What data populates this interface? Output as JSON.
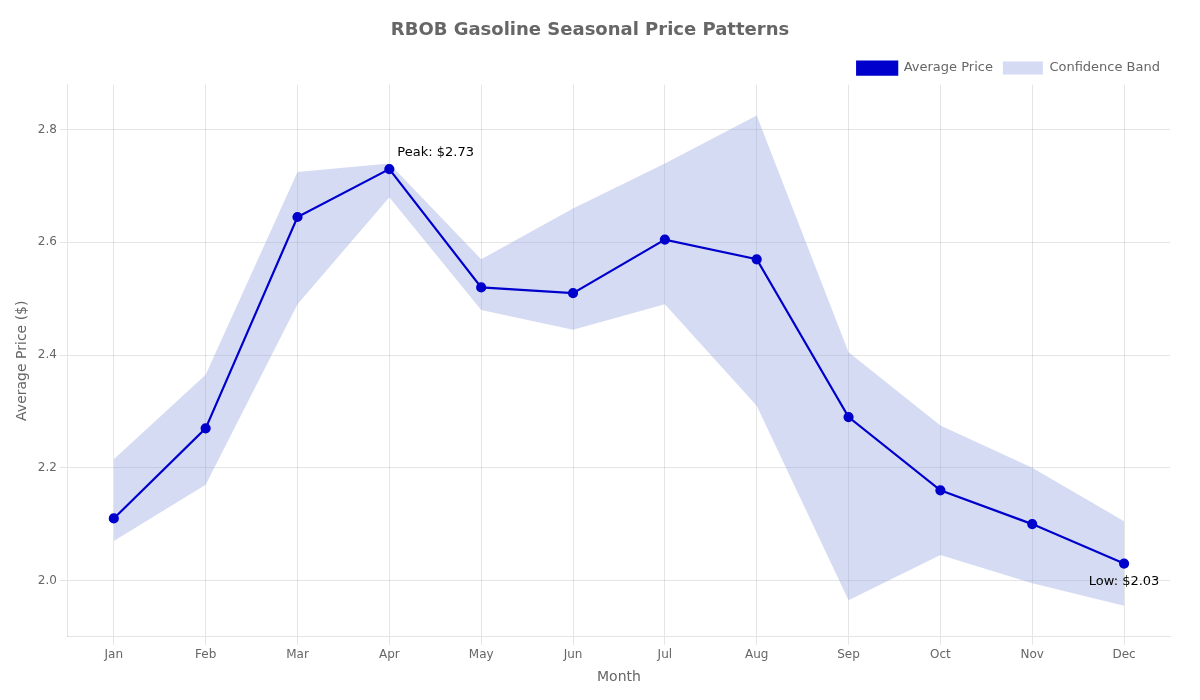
{
  "chart_data": {
    "type": "line",
    "title": "RBOB Gasoline Seasonal Price Patterns",
    "xlabel": "Month",
    "ylabel": "Average Price ($)",
    "categories": [
      "Jan",
      "Feb",
      "Mar",
      "Apr",
      "May",
      "Jun",
      "Jul",
      "Aug",
      "Sep",
      "Oct",
      "Nov",
      "Dec"
    ],
    "series": [
      {
        "name": "Average Price",
        "color": "#0000cc",
        "marker": "o",
        "line_style": "solid",
        "values": [
          2.11,
          2.27,
          2.645,
          2.73,
          2.52,
          2.51,
          2.605,
          2.57,
          2.29,
          2.16,
          2.1,
          2.03
        ]
      },
      {
        "name": "Confidence Band",
        "type": "band",
        "color": "#8899dd",
        "upper": [
          2.215,
          2.365,
          2.725,
          2.74,
          2.57,
          2.66,
          2.74,
          2.825,
          2.405,
          2.275,
          2.2,
          2.105
        ],
        "lower": [
          2.07,
          2.17,
          2.49,
          2.68,
          2.48,
          2.445,
          2.49,
          2.31,
          1.965,
          2.045,
          1.995,
          1.955
        ]
      }
    ],
    "annotations": [
      {
        "text": "Peak: $2.73",
        "x": "Apr",
        "y": 2.73
      },
      {
        "text": "Low: $2.03",
        "x": "Dec",
        "y": 2.03
      }
    ],
    "ylim": [
      1.9,
      2.88
    ],
    "yticks": [
      {
        "value": 2.0,
        "label": "2.0"
      },
      2.2,
      2.4,
      2.6,
      2.8
    ],
    "grid": true,
    "legend": "upper right"
  }
}
